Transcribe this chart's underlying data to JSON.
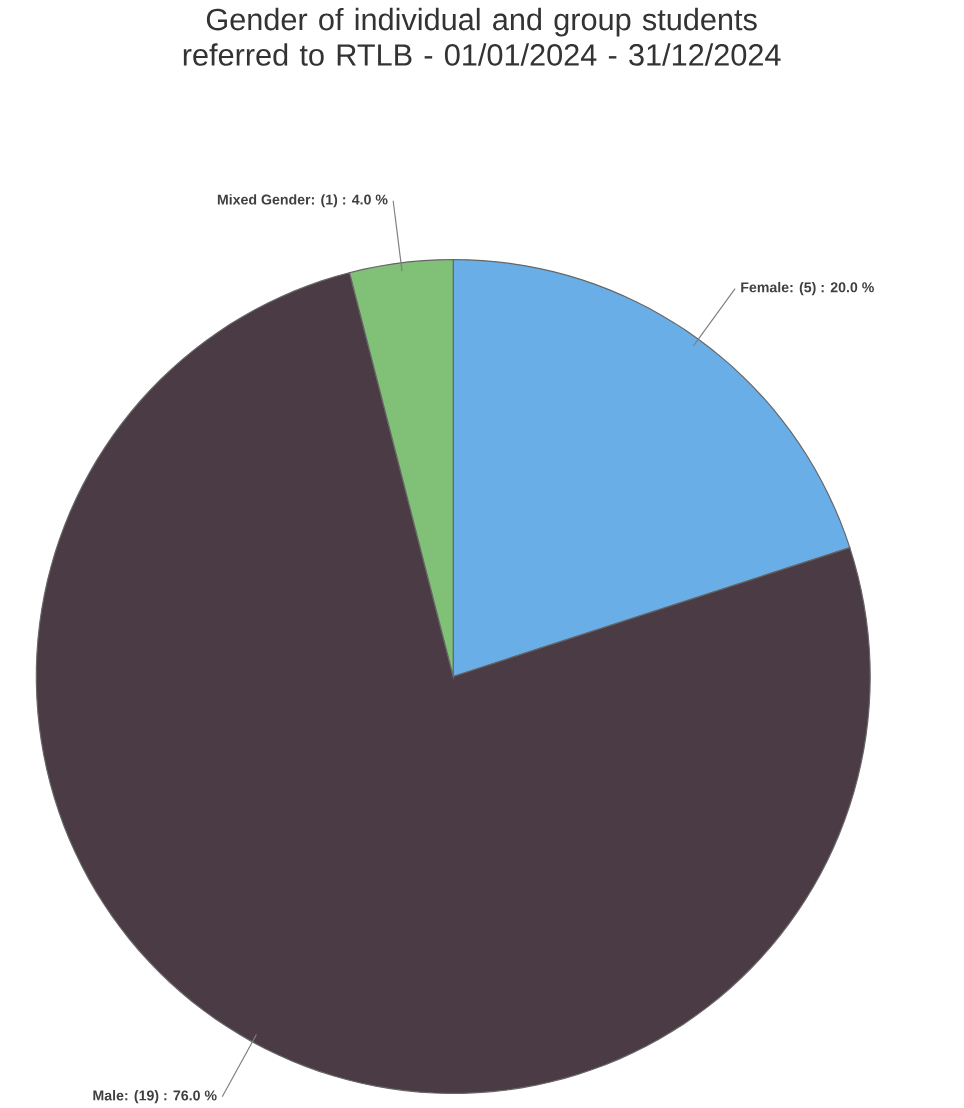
{
  "chart_data": {
    "type": "pie",
    "title": "Gender of individual and group students referred to RTLB - 01/01/2024 - 31/12/2024",
    "categories": [
      "Female: (5) : 20.0 %",
      "Male: (19) : 76.0 %",
      "Mixed Gender: (1) : 4.0 %"
    ],
    "values": [
      5,
      19,
      1
    ],
    "colors": [
      "#6aaee8",
      "#4b3b45",
      "#80c077"
    ]
  }
}
